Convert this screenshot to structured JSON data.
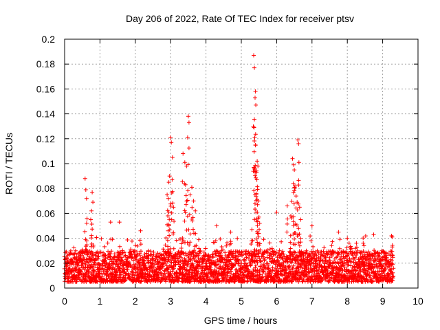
{
  "chart_data": {
    "type": "scatter",
    "title": "Day 206 of 2022, Rate Of TEC Index for receiver ptsv",
    "xlabel": "GPS time / hours",
    "ylabel": "ROTI / TECUs",
    "xlim": [
      0,
      10
    ],
    "ylim": [
      0,
      0.2
    ],
    "xticks": [
      0,
      1,
      2,
      3,
      4,
      5,
      6,
      7,
      8,
      9,
      10
    ],
    "yticks": [
      0,
      0.02,
      0.04,
      0.06,
      0.08,
      0.1,
      0.12,
      0.14,
      0.16,
      0.18,
      0.2
    ],
    "xtick_labels": [
      "0",
      "1",
      "2",
      "3",
      "4",
      "5",
      "6",
      "7",
      "8",
      "9",
      "10"
    ],
    "ytick_labels": [
      "0",
      "0.02",
      "0.04",
      "0.06",
      "0.08",
      "0.1",
      "0.12",
      "0.14",
      "0.16",
      "0.18",
      "0.2"
    ],
    "grid": true,
    "marker": "+",
    "color": "#ff0000",
    "series": [
      {
        "name": "ROTI",
        "x_range": [
          0,
          9.3
        ],
        "background_band": [
          0.005,
          0.03
        ],
        "peaks": [
          {
            "x": 0.58,
            "y": 0.088
          },
          {
            "x": 0.6,
            "y": 0.079
          },
          {
            "x": 0.62,
            "y": 0.072
          },
          {
            "x": 0.78,
            "y": 0.077
          },
          {
            "x": 0.8,
            "y": 0.069
          },
          {
            "x": 0.76,
            "y": 0.062
          },
          {
            "x": 0.74,
            "y": 0.055
          },
          {
            "x": 1.3,
            "y": 0.053
          },
          {
            "x": 1.55,
            "y": 0.053
          },
          {
            "x": 2.15,
            "y": 0.046
          },
          {
            "x": 2.9,
            "y": 0.075
          },
          {
            "x": 2.95,
            "y": 0.085
          },
          {
            "x": 2.97,
            "y": 0.09
          },
          {
            "x": 3.0,
            "y": 0.121
          },
          {
            "x": 3.02,
            "y": 0.117
          },
          {
            "x": 3.05,
            "y": 0.105
          },
          {
            "x": 3.08,
            "y": 0.065
          },
          {
            "x": 2.92,
            "y": 0.058
          },
          {
            "x": 3.35,
            "y": 0.108
          },
          {
            "x": 3.4,
            "y": 0.101
          },
          {
            "x": 3.45,
            "y": 0.098
          },
          {
            "x": 3.5,
            "y": 0.138
          },
          {
            "x": 3.52,
            "y": 0.133
          },
          {
            "x": 3.48,
            "y": 0.121
          },
          {
            "x": 3.42,
            "y": 0.083
          },
          {
            "x": 3.6,
            "y": 0.081
          },
          {
            "x": 3.65,
            "y": 0.07
          },
          {
            "x": 3.7,
            "y": 0.062
          },
          {
            "x": 3.55,
            "y": 0.075
          },
          {
            "x": 4.3,
            "y": 0.05
          },
          {
            "x": 4.7,
            "y": 0.045
          },
          {
            "x": 5.3,
            "y": 0.047
          },
          {
            "x": 5.35,
            "y": 0.187
          },
          {
            "x": 5.37,
            "y": 0.177
          },
          {
            "x": 5.4,
            "y": 0.158
          },
          {
            "x": 5.39,
            "y": 0.153
          },
          {
            "x": 5.41,
            "y": 0.147
          },
          {
            "x": 5.36,
            "y": 0.129
          },
          {
            "x": 5.38,
            "y": 0.121
          },
          {
            "x": 5.4,
            "y": 0.115
          },
          {
            "x": 5.45,
            "y": 0.102
          },
          {
            "x": 5.47,
            "y": 0.098
          },
          {
            "x": 5.43,
            "y": 0.093
          },
          {
            "x": 5.44,
            "y": 0.087
          },
          {
            "x": 5.48,
            "y": 0.07
          },
          {
            "x": 5.46,
            "y": 0.067
          },
          {
            "x": 5.5,
            "y": 0.057
          },
          {
            "x": 5.52,
            "y": 0.052
          },
          {
            "x": 6.0,
            "y": 0.061
          },
          {
            "x": 6.3,
            "y": 0.066
          },
          {
            "x": 6.45,
            "y": 0.104
          },
          {
            "x": 6.48,
            "y": 0.099
          },
          {
            "x": 6.5,
            "y": 0.095
          },
          {
            "x": 6.47,
            "y": 0.084
          },
          {
            "x": 6.52,
            "y": 0.082
          },
          {
            "x": 6.55,
            "y": 0.074
          },
          {
            "x": 6.58,
            "y": 0.069
          },
          {
            "x": 6.6,
            "y": 0.119
          },
          {
            "x": 6.62,
            "y": 0.116
          },
          {
            "x": 6.63,
            "y": 0.101
          },
          {
            "x": 6.65,
            "y": 0.065
          },
          {
            "x": 6.4,
            "y": 0.058
          },
          {
            "x": 6.68,
            "y": 0.055
          },
          {
            "x": 7.0,
            "y": 0.05
          },
          {
            "x": 7.75,
            "y": 0.045
          },
          {
            "x": 8.0,
            "y": 0.04
          },
          {
            "x": 8.45,
            "y": 0.036
          },
          {
            "x": 8.47,
            "y": 0.034
          },
          {
            "x": 9.25,
            "y": 0.042
          },
          {
            "x": 9.27,
            "y": 0.041
          }
        ]
      }
    ]
  }
}
